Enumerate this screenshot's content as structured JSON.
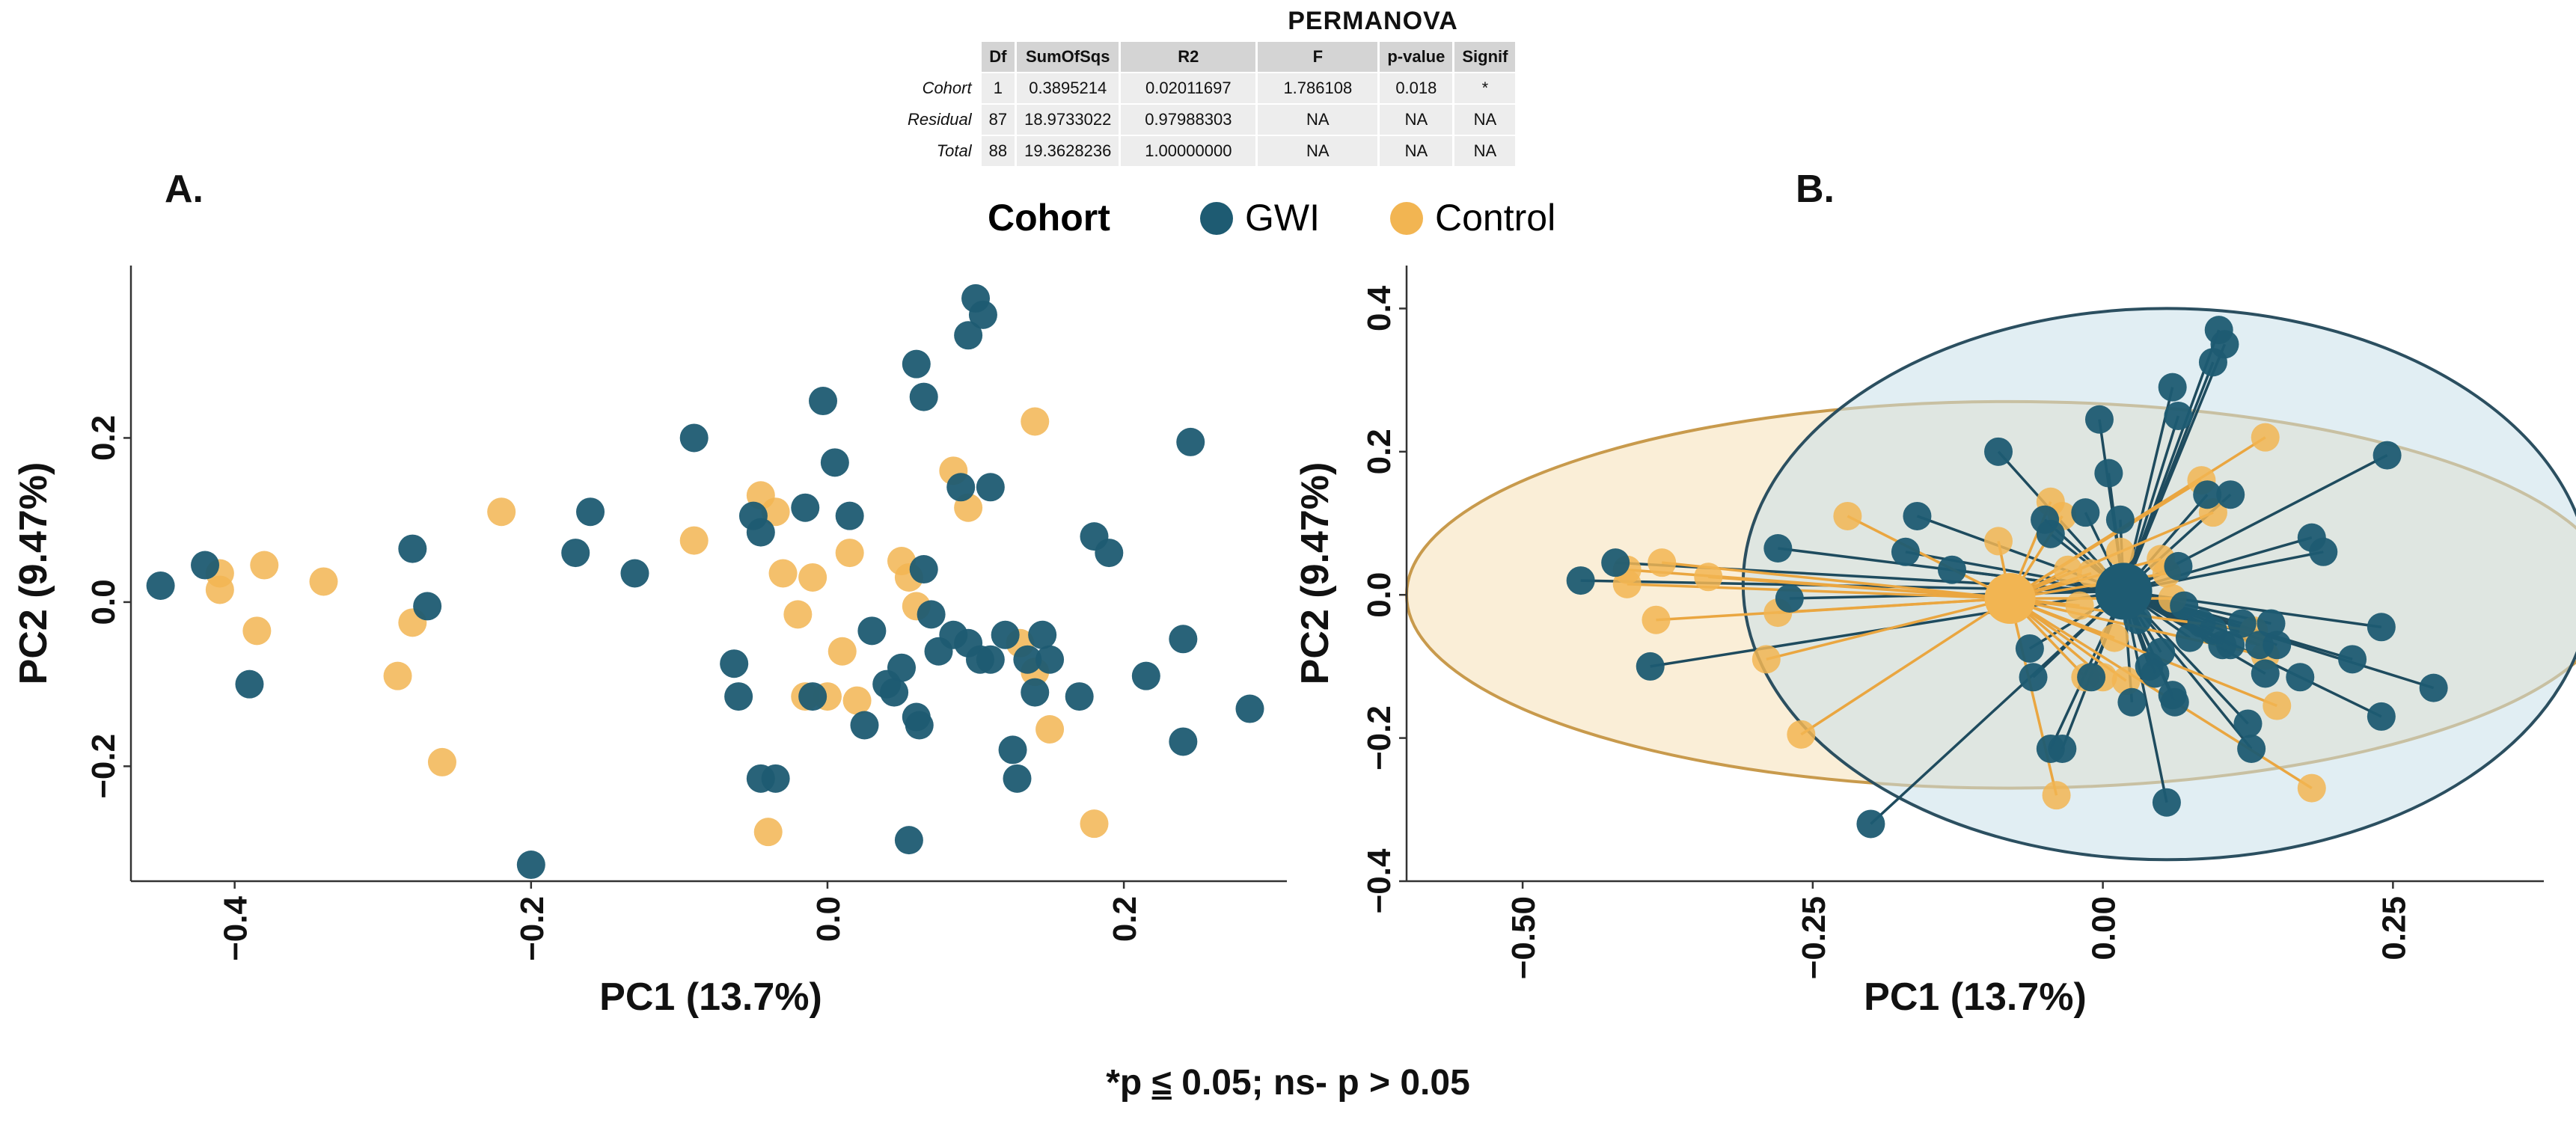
{
  "permanova": {
    "title": "PERMANOVA",
    "columns": [
      "Df",
      "SumOfSqs",
      "R2",
      "F",
      "p-value",
      "Signif"
    ],
    "rows": [
      {
        "label": "Cohort",
        "Df": "1",
        "SumOfSqs": "0.3895214",
        "R2": "0.02011697",
        "F": "1.786108",
        "p": "0.018",
        "Signif": "*"
      },
      {
        "label": "Residual",
        "Df": "87",
        "SumOfSqs": "18.9733022",
        "R2": "0.97988303",
        "F": "NA",
        "p": "NA",
        "Signif": "NA"
      },
      {
        "label": "Total",
        "Df": "88",
        "SumOfSqs": "19.3628236",
        "R2": "1.00000000",
        "F": "NA",
        "p": "NA",
        "Signif": "NA"
      }
    ]
  },
  "legend": {
    "title": "Cohort",
    "items": [
      "GWI",
      "Control"
    ]
  },
  "colors": {
    "GWI": "#1e5b72",
    "Control": "#f2b552",
    "gwi_fill": "#c9e0ea",
    "ctrl_fill": "#f6e2bd"
  },
  "footnote": {
    "star": "*",
    "prefix": "p ",
    "le": "≤",
    "rest": " 0.05;   ns- p > 0.05"
  },
  "chart_data": [
    {
      "panel": "A.",
      "type": "scatter",
      "xlabel": "PC1 (13.7%)",
      "ylabel": "PC2 (9.47%)",
      "xlim": [
        -0.47,
        0.31
      ],
      "ylim": [
        -0.34,
        0.41
      ],
      "xticks": [
        -0.4,
        -0.2,
        0.0,
        0.2
      ],
      "xtick_labels": [
        "−0.4",
        "−0.2",
        "0.0",
        "0.2"
      ],
      "yticks": [
        -0.2,
        0.0,
        0.2
      ],
      "ytick_labels": [
        "−0.2",
        "0.0",
        "0.2"
      ],
      "series": [
        {
          "name": "GWI",
          "points": [
            [
              -0.45,
              0.02
            ],
            [
              -0.42,
              0.045
            ],
            [
              -0.39,
              -0.1
            ],
            [
              -0.28,
              0.065
            ],
            [
              -0.27,
              -0.005
            ],
            [
              -0.2,
              -0.32
            ],
            [
              -0.17,
              0.06
            ],
            [
              -0.16,
              0.11
            ],
            [
              -0.13,
              0.035
            ],
            [
              -0.09,
              0.2
            ],
            [
              -0.063,
              -0.075
            ],
            [
              -0.06,
              -0.115
            ],
            [
              -0.05,
              0.105
            ],
            [
              -0.045,
              0.085
            ],
            [
              -0.045,
              -0.215
            ],
            [
              -0.035,
              -0.215
            ],
            [
              -0.015,
              0.115
            ],
            [
              -0.01,
              -0.115
            ],
            [
              -0.003,
              0.245
            ],
            [
              0.005,
              0.17
            ],
            [
              0.015,
              0.105
            ],
            [
              0.025,
              -0.15
            ],
            [
              0.03,
              -0.035
            ],
            [
              0.04,
              -0.1
            ],
            [
              0.045,
              -0.11
            ],
            [
              0.05,
              -0.08
            ],
            [
              0.055,
              -0.29
            ],
            [
              0.06,
              0.29
            ],
            [
              0.06,
              -0.14
            ],
            [
              0.062,
              -0.15
            ],
            [
              0.065,
              0.25
            ],
            [
              0.065,
              0.04
            ],
            [
              0.07,
              -0.015
            ],
            [
              0.075,
              -0.06
            ],
            [
              0.085,
              -0.04
            ],
            [
              0.09,
              0.14
            ],
            [
              0.095,
              -0.05
            ],
            [
              0.095,
              0.325
            ],
            [
              0.1,
              0.37
            ],
            [
              0.103,
              -0.07
            ],
            [
              0.105,
              0.35
            ],
            [
              0.11,
              -0.07
            ],
            [
              0.11,
              0.14
            ],
            [
              0.12,
              -0.04
            ],
            [
              0.125,
              -0.18
            ],
            [
              0.128,
              -0.215
            ],
            [
              0.135,
              -0.07
            ],
            [
              0.14,
              -0.11
            ],
            [
              0.145,
              -0.04
            ],
            [
              0.15,
              -0.07
            ],
            [
              0.17,
              -0.115
            ],
            [
              0.18,
              0.08
            ],
            [
              0.19,
              0.06
            ],
            [
              0.215,
              -0.09
            ],
            [
              0.24,
              -0.045
            ],
            [
              0.24,
              -0.17
            ],
            [
              0.245,
              0.195
            ],
            [
              0.285,
              -0.13
            ]
          ]
        },
        {
          "name": "Control",
          "points": [
            [
              -0.41,
              0.035
            ],
            [
              -0.41,
              0.015
            ],
            [
              -0.385,
              -0.035
            ],
            [
              -0.38,
              0.045
            ],
            [
              -0.34,
              0.025
            ],
            [
              -0.29,
              -0.09
            ],
            [
              -0.28,
              -0.025
            ],
            [
              -0.26,
              -0.195
            ],
            [
              -0.22,
              0.11
            ],
            [
              -0.09,
              0.075
            ],
            [
              -0.045,
              0.13
            ],
            [
              -0.04,
              -0.28
            ],
            [
              -0.035,
              0.11
            ],
            [
              -0.03,
              0.035
            ],
            [
              -0.02,
              -0.015
            ],
            [
              -0.015,
              -0.115
            ],
            [
              -0.01,
              0.03
            ],
            [
              0.0,
              -0.115
            ],
            [
              0.01,
              -0.06
            ],
            [
              0.015,
              0.06
            ],
            [
              0.02,
              -0.12
            ],
            [
              0.05,
              0.05
            ],
            [
              0.055,
              0.03
            ],
            [
              0.06,
              -0.005
            ],
            [
              0.085,
              0.16
            ],
            [
              0.095,
              0.115
            ],
            [
              0.13,
              -0.05
            ],
            [
              0.14,
              0.22
            ],
            [
              0.14,
              -0.085
            ],
            [
              0.15,
              -0.155
            ],
            [
              0.18,
              -0.27
            ]
          ]
        }
      ]
    },
    {
      "panel": "B.",
      "type": "scatter",
      "xlabel": "PC1 (13.7%)",
      "ylabel": "PC2 (9.47%)",
      "xlim": [
        -0.6,
        0.38
      ],
      "ylim": [
        -0.4,
        0.46
      ],
      "xticks": [
        -0.5,
        -0.25,
        0.0,
        0.25
      ],
      "xtick_labels": [
        "−0.50",
        "−0.25",
        "0.00",
        "0.25"
      ],
      "yticks": [
        -0.4,
        -0.2,
        0.0,
        0.2,
        0.4
      ],
      "ytick_labels": [
        "−0.4",
        "−0.2",
        "0.0",
        "0.2",
        "0.4"
      ],
      "centroids": {
        "GWI": [
          0.018,
          0.005
        ],
        "Control": [
          -0.08,
          -0.005
        ]
      },
      "ellipses": [
        {
          "name": "Control",
          "center": [
            -0.08,
            0.0
          ],
          "radii": [
            0.52,
            0.27
          ]
        },
        {
          "name": "GWI",
          "center": [
            0.055,
            0.015
          ],
          "radii": [
            0.365,
            0.385
          ]
        }
      ],
      "series": [
        {
          "name": "GWI",
          "points": [
            [
              -0.45,
              0.02
            ],
            [
              -0.42,
              0.045
            ],
            [
              -0.39,
              -0.1
            ],
            [
              -0.28,
              0.065
            ],
            [
              -0.27,
              -0.005
            ],
            [
              -0.2,
              -0.32
            ],
            [
              -0.17,
              0.06
            ],
            [
              -0.16,
              0.11
            ],
            [
              -0.13,
              0.035
            ],
            [
              -0.09,
              0.2
            ],
            [
              -0.063,
              -0.075
            ],
            [
              -0.06,
              -0.115
            ],
            [
              -0.05,
              0.105
            ],
            [
              -0.045,
              0.085
            ],
            [
              -0.045,
              -0.215
            ],
            [
              -0.035,
              -0.215
            ],
            [
              -0.015,
              0.115
            ],
            [
              -0.01,
              -0.115
            ],
            [
              -0.003,
              0.245
            ],
            [
              0.005,
              0.17
            ],
            [
              0.015,
              0.105
            ],
            [
              0.025,
              -0.15
            ],
            [
              0.03,
              -0.035
            ],
            [
              0.04,
              -0.1
            ],
            [
              0.045,
              -0.11
            ],
            [
              0.05,
              -0.08
            ],
            [
              0.055,
              -0.29
            ],
            [
              0.06,
              0.29
            ],
            [
              0.06,
              -0.14
            ],
            [
              0.062,
              -0.15
            ],
            [
              0.065,
              0.25
            ],
            [
              0.065,
              0.04
            ],
            [
              0.07,
              -0.015
            ],
            [
              0.075,
              -0.06
            ],
            [
              0.085,
              -0.04
            ],
            [
              0.09,
              0.14
            ],
            [
              0.095,
              -0.05
            ],
            [
              0.095,
              0.325
            ],
            [
              0.1,
              0.37
            ],
            [
              0.103,
              -0.07
            ],
            [
              0.105,
              0.35
            ],
            [
              0.11,
              -0.07
            ],
            [
              0.11,
              0.14
            ],
            [
              0.12,
              -0.04
            ],
            [
              0.125,
              -0.18
            ],
            [
              0.128,
              -0.215
            ],
            [
              0.135,
              -0.07
            ],
            [
              0.14,
              -0.11
            ],
            [
              0.145,
              -0.04
            ],
            [
              0.15,
              -0.07
            ],
            [
              0.17,
              -0.115
            ],
            [
              0.18,
              0.08
            ],
            [
              0.19,
              0.06
            ],
            [
              0.215,
              -0.09
            ],
            [
              0.24,
              -0.045
            ],
            [
              0.24,
              -0.17
            ],
            [
              0.245,
              0.195
            ],
            [
              0.285,
              -0.13
            ]
          ]
        },
        {
          "name": "Control",
          "points": [
            [
              -0.41,
              0.035
            ],
            [
              -0.41,
              0.015
            ],
            [
              -0.385,
              -0.035
            ],
            [
              -0.38,
              0.045
            ],
            [
              -0.34,
              0.025
            ],
            [
              -0.29,
              -0.09
            ],
            [
              -0.28,
              -0.025
            ],
            [
              -0.26,
              -0.195
            ],
            [
              -0.22,
              0.11
            ],
            [
              -0.09,
              0.075
            ],
            [
              -0.045,
              0.13
            ],
            [
              -0.04,
              -0.28
            ],
            [
              -0.035,
              0.11
            ],
            [
              -0.03,
              0.035
            ],
            [
              -0.02,
              -0.015
            ],
            [
              -0.015,
              -0.115
            ],
            [
              -0.01,
              0.03
            ],
            [
              0.0,
              -0.115
            ],
            [
              0.01,
              -0.06
            ],
            [
              0.015,
              0.06
            ],
            [
              0.02,
              -0.12
            ],
            [
              0.05,
              0.05
            ],
            [
              0.055,
              0.03
            ],
            [
              0.06,
              -0.005
            ],
            [
              0.085,
              0.16
            ],
            [
              0.095,
              0.115
            ],
            [
              0.13,
              -0.05
            ],
            [
              0.14,
              0.22
            ],
            [
              0.14,
              -0.085
            ],
            [
              0.15,
              -0.155
            ],
            [
              0.18,
              -0.27
            ]
          ]
        }
      ]
    }
  ]
}
